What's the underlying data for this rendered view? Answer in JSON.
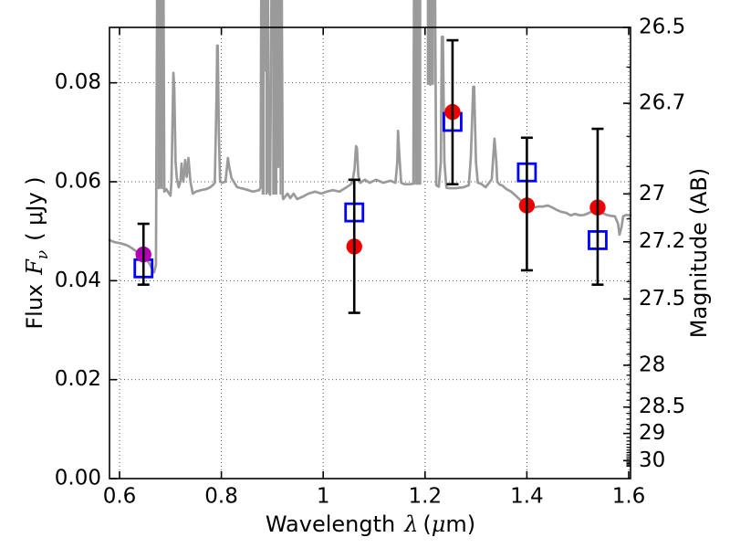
{
  "labels": {
    "xlabel": {
      "word": "Wavelength",
      "lambda": "λ",
      "unit_open": "(",
      "mu": "μ",
      "unit_close": "m)"
    },
    "ylabel_left": {
      "word": "Flux",
      "F": "F",
      "nu": "ν",
      "unit": "( μJy )"
    },
    "ylabel_right": "Magnitude (AB)"
  },
  "chart_data": {
    "type": "line+scatter",
    "title": "",
    "xlabel": "Wavelength λ (μm)",
    "ylabel": "Flux Fν ( μJy )",
    "ylabel_right": "Magnitude (AB)",
    "legend": "none",
    "grid": "dotted major both axes",
    "x_axis": {
      "min": 0.5803,
      "max": 1.6036,
      "values": [
        0.6,
        0.8,
        1.0,
        1.2,
        1.4,
        1.6
      ],
      "labels": [
        "0.6",
        "0.8",
        "1",
        "1.2",
        "1.4",
        "1.6"
      ]
    },
    "y_axis_flux": {
      "min": 0.0,
      "max": 0.0912,
      "values": [
        0.0,
        0.02,
        0.04,
        0.06,
        0.08
      ],
      "labels": [
        "0.00",
        "0.02",
        "0.04",
        "0.06",
        "0.08"
      ]
    },
    "y_axis_mag": {
      "major_values": [
        26.5,
        26.7,
        27.0,
        27.2,
        27.5,
        28.0,
        28.5,
        29.0,
        30.0
      ],
      "major_labels": [
        "26.5",
        "26.7",
        "27",
        "27.2",
        "27.5",
        "28",
        "28.5",
        "29",
        "30"
      ],
      "minor_values": [
        26.6,
        26.8,
        26.9,
        27.1,
        27.3,
        27.4,
        27.6,
        27.7,
        27.8,
        27.9,
        28.1,
        28.2,
        28.3,
        28.4,
        28.6,
        28.7,
        28.8,
        28.9,
        29.1,
        29.2,
        29.3,
        29.4,
        29.5,
        29.6,
        29.7,
        29.8,
        29.9,
        30.1,
        30.2,
        30.3,
        30.4
      ]
    },
    "colors": {
      "spectrum": "#9a9a9a",
      "circle": "#ee0000",
      "first_circle": "#b400b4",
      "square": "#0000ff",
      "errorbar": "#000000",
      "grid": "#555555"
    },
    "photometry": [
      {
        "x": 0.647,
        "circle": 0.0453,
        "square": 0.0425,
        "err_lo": 0.0392,
        "err_hi": 0.0515,
        "circle_color": "#b400b4"
      },
      {
        "x": 1.061,
        "circle": 0.0469,
        "square": 0.0538,
        "err_lo": 0.0335,
        "err_hi": 0.0604
      },
      {
        "x": 1.254,
        "circle": 0.0741,
        "square": 0.0721,
        "err_lo": 0.0595,
        "err_hi": 0.0886
      },
      {
        "x": 1.4,
        "circle": 0.0552,
        "square": 0.0619,
        "err_lo": 0.0421,
        "err_hi": 0.0689
      },
      {
        "x": 1.539,
        "circle": 0.0548,
        "square": 0.0482,
        "err_lo": 0.0392,
        "err_hi": 0.0707
      }
    ],
    "emission_bands": [
      {
        "x0": 0.6747,
        "x1": 0.6801,
        "base": 0.0585
      },
      {
        "x0": 0.6812,
        "x1": 0.6855,
        "base": 0.0585
      },
      {
        "x0": 0.879,
        "x1": 0.885,
        "base": 0.0574
      },
      {
        "x0": 0.8864,
        "x1": 0.8909,
        "base": 0.0574
      },
      {
        "x0": 0.8998,
        "x1": 0.91,
        "base": 0.0574
      },
      {
        "x0": 0.9142,
        "x1": 0.9177,
        "base": 0.0574
      },
      {
        "x0": 1.1794,
        "x1": 1.1927,
        "base": 0.0594
      },
      {
        "x0": 1.2034,
        "x1": 1.2093,
        "base": 0.0796
      },
      {
        "x0": 1.2111,
        "x1": 1.2177,
        "base": 0.0796
      }
    ],
    "spectrum": [
      [
        0.5803,
        0.0482
      ],
      [
        0.59,
        0.0478
      ],
      [
        0.6,
        0.0476
      ],
      [
        0.608,
        0.0474
      ],
      [
        0.616,
        0.0471
      ],
      [
        0.624,
        0.0466
      ],
      [
        0.632,
        0.046
      ],
      [
        0.64,
        0.0454
      ],
      [
        0.647,
        0.045
      ],
      [
        0.6533,
        0.0443
      ],
      [
        0.659,
        0.0434
      ],
      [
        0.664,
        0.0424
      ],
      [
        0.668,
        0.0417
      ],
      [
        0.6715,
        0.0432
      ],
      [
        0.6747,
        0.12
      ],
      [
        0.6801,
        0.12
      ],
      [
        0.6806,
        0.059
      ],
      [
        0.6812,
        0.12
      ],
      [
        0.6855,
        0.12
      ],
      [
        0.688,
        0.058
      ],
      [
        0.692,
        0.0585
      ],
      [
        0.696,
        0.0578
      ],
      [
        0.7,
        0.0572
      ],
      [
        0.702,
        0.06
      ],
      [
        0.7057,
        0.082
      ],
      [
        0.7075,
        0.0788
      ],
      [
        0.71,
        0.064
      ],
      [
        0.7125,
        0.0607
      ],
      [
        0.7161,
        0.0589
      ],
      [
        0.7196,
        0.06
      ],
      [
        0.7218,
        0.0637
      ],
      [
        0.7232,
        0.0615
      ],
      [
        0.7254,
        0.06
      ],
      [
        0.7289,
        0.0644
      ],
      [
        0.7321,
        0.061
      ],
      [
        0.7354,
        0.0648
      ],
      [
        0.7393,
        0.06
      ],
      [
        0.7439,
        0.0576
      ],
      [
        0.75,
        0.058
      ],
      [
        0.76,
        0.0583
      ],
      [
        0.77,
        0.0585
      ],
      [
        0.7782,
        0.0589
      ],
      [
        0.7829,
        0.0593
      ],
      [
        0.7871,
        0.0598
      ],
      [
        0.7907,
        0.078
      ],
      [
        0.7918,
        0.0875
      ],
      [
        0.7929,
        0.0875
      ],
      [
        0.795,
        0.07
      ],
      [
        0.7975,
        0.06
      ],
      [
        0.801,
        0.0598
      ],
      [
        0.808,
        0.06
      ],
      [
        0.8129,
        0.0648
      ],
      [
        0.8154,
        0.063
      ],
      [
        0.82,
        0.0607
      ],
      [
        0.831,
        0.0589
      ],
      [
        0.846,
        0.0585
      ],
      [
        0.862,
        0.058
      ],
      [
        0.874,
        0.0583
      ],
      [
        0.877,
        0.0589
      ],
      [
        0.879,
        0.12
      ],
      [
        0.885,
        0.12
      ],
      [
        0.8857,
        0.0825
      ],
      [
        0.8864,
        0.12
      ],
      [
        0.8909,
        0.12
      ],
      [
        0.893,
        0.058
      ],
      [
        0.8957,
        0.0574
      ],
      [
        0.8998,
        0.12
      ],
      [
        0.91,
        0.12
      ],
      [
        0.912,
        0.063
      ],
      [
        0.9142,
        0.12
      ],
      [
        0.9177,
        0.12
      ],
      [
        0.9205,
        0.057
      ],
      [
        0.9215,
        0.0565
      ],
      [
        0.93,
        0.0576
      ],
      [
        0.9354,
        0.0567
      ],
      [
        0.9418,
        0.0576
      ],
      [
        0.949,
        0.0565
      ],
      [
        0.96,
        0.057
      ],
      [
        0.971,
        0.0576
      ],
      [
        0.984,
        0.058
      ],
      [
        0.996,
        0.0576
      ],
      [
        1.007,
        0.058
      ],
      [
        1.019,
        0.0583
      ],
      [
        1.032,
        0.058
      ],
      [
        1.043,
        0.0587
      ],
      [
        1.052,
        0.0593
      ],
      [
        1.057,
        0.0598
      ],
      [
        1.0614,
        0.0625
      ],
      [
        1.0645,
        0.0672
      ],
      [
        1.0663,
        0.0668
      ],
      [
        1.069,
        0.0612
      ],
      [
        1.073,
        0.0598
      ],
      [
        1.082,
        0.0604
      ],
      [
        1.091,
        0.0598
      ],
      [
        1.104,
        0.0604
      ],
      [
        1.118,
        0.0598
      ],
      [
        1.132,
        0.0602
      ],
      [
        1.142,
        0.0598
      ],
      [
        1.1455,
        0.064
      ],
      [
        1.147,
        0.0703
      ],
      [
        1.1495,
        0.0655
      ],
      [
        1.153,
        0.0598
      ],
      [
        1.16,
        0.0595
      ],
      [
        1.17,
        0.0595
      ],
      [
        1.177,
        0.0596
      ],
      [
        1.1794,
        0.13
      ],
      [
        1.2093,
        0.13
      ],
      [
        1.2102,
        0.0796
      ],
      [
        1.2111,
        0.13
      ],
      [
        1.2177,
        0.13
      ],
      [
        1.2221,
        0.0593
      ],
      [
        1.227,
        0.059
      ],
      [
        1.231,
        0.064
      ],
      [
        1.233,
        0.0893
      ],
      [
        1.2352,
        0.0893
      ],
      [
        1.238,
        0.064
      ],
      [
        1.242,
        0.0588
      ],
      [
        1.247,
        0.0587
      ],
      [
        1.261,
        0.0587
      ],
      [
        1.276,
        0.0589
      ],
      [
        1.286,
        0.0593
      ],
      [
        1.29,
        0.065
      ],
      [
        1.2946,
        0.0792
      ],
      [
        1.2964,
        0.0792
      ],
      [
        1.3,
        0.064
      ],
      [
        1.3036,
        0.0598
      ],
      [
        1.31,
        0.0596
      ],
      [
        1.319,
        0.0589
      ],
      [
        1.326,
        0.0598
      ],
      [
        1.331,
        0.0605
      ],
      [
        1.3364,
        0.0687
      ],
      [
        1.34,
        0.064
      ],
      [
        1.3418,
        0.06
      ],
      [
        1.347,
        0.0594
      ],
      [
        1.351,
        0.0593
      ],
      [
        1.36,
        0.0585
      ],
      [
        1.369,
        0.058
      ],
      [
        1.378,
        0.0572
      ],
      [
        1.387,
        0.0563
      ],
      [
        1.396,
        0.0556
      ],
      [
        1.405,
        0.055
      ],
      [
        1.414,
        0.0548
      ],
      [
        1.423,
        0.055
      ],
      [
        1.432,
        0.055
      ],
      [
        1.441,
        0.0552
      ],
      [
        1.45,
        0.0548
      ],
      [
        1.459,
        0.0543
      ],
      [
        1.468,
        0.0539
      ],
      [
        1.477,
        0.0537
      ],
      [
        1.486,
        0.0532
      ],
      [
        1.495,
        0.0535
      ],
      [
        1.504,
        0.0532
      ],
      [
        1.513,
        0.0533
      ],
      [
        1.522,
        0.0537
      ],
      [
        1.53,
        0.0541
      ],
      [
        1.539,
        0.0539
      ],
      [
        1.548,
        0.0537
      ],
      [
        1.557,
        0.0533
      ],
      [
        1.566,
        0.0531
      ],
      [
        1.573,
        0.053
      ],
      [
        1.579,
        0.0515
      ],
      [
        1.582,
        0.0493
      ],
      [
        1.586,
        0.0509
      ],
      [
        1.589,
        0.053
      ],
      [
        1.595,
        0.0533
      ],
      [
        1.6036,
        0.0532
      ]
    ]
  }
}
